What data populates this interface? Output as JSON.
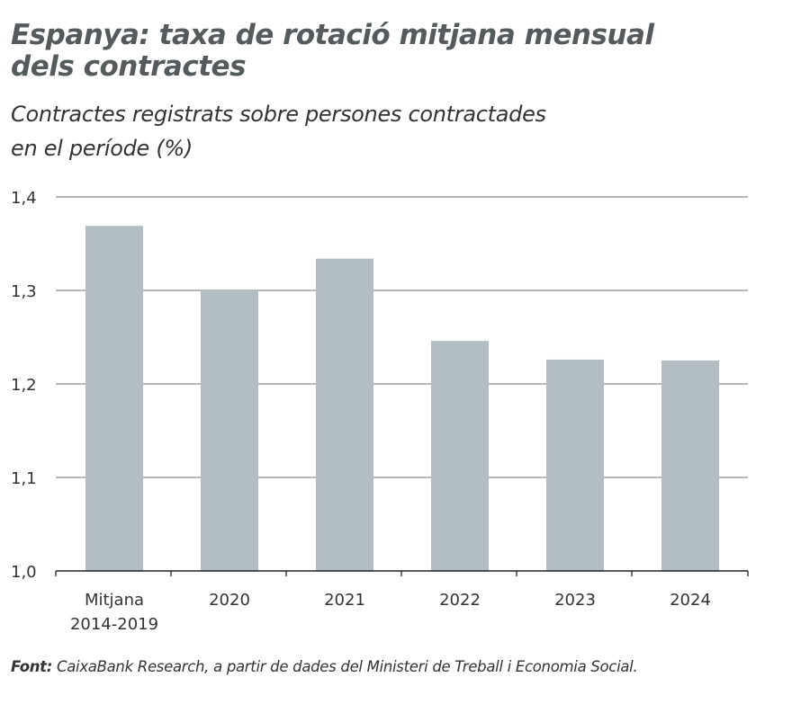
{
  "title_line1": "Espanya: taxa de rotació mitjana mensual",
  "title_line2": "dels contractes",
  "subtitle_line1": "Contractes registrats sobre persones contractades",
  "subtitle_line2": "en el període (%)",
  "source_label": "Font:",
  "source_text": " CaixaBank Research, a partir de dades del Ministeri de Treball i Economia Social.",
  "colors": {
    "bar": "#b3bec2",
    "grid": "#8a8a8a",
    "axis": "#222222"
  },
  "chart_data": {
    "type": "bar",
    "categories": [
      [
        "Mitjana",
        "2014-2019"
      ],
      [
        "2020"
      ],
      [
        "2021"
      ],
      [
        "2022"
      ],
      [
        "2023"
      ],
      [
        "2024"
      ]
    ],
    "values": [
      1.369,
      1.3,
      1.334,
      1.246,
      1.226,
      1.225
    ],
    "ylim": [
      1.0,
      1.4
    ],
    "yticks": [
      1.0,
      1.1,
      1.2,
      1.3,
      1.4
    ],
    "ytick_labels": [
      "1,0",
      "1,1",
      "1,2",
      "1,3",
      "1,4"
    ],
    "grid": true
  }
}
